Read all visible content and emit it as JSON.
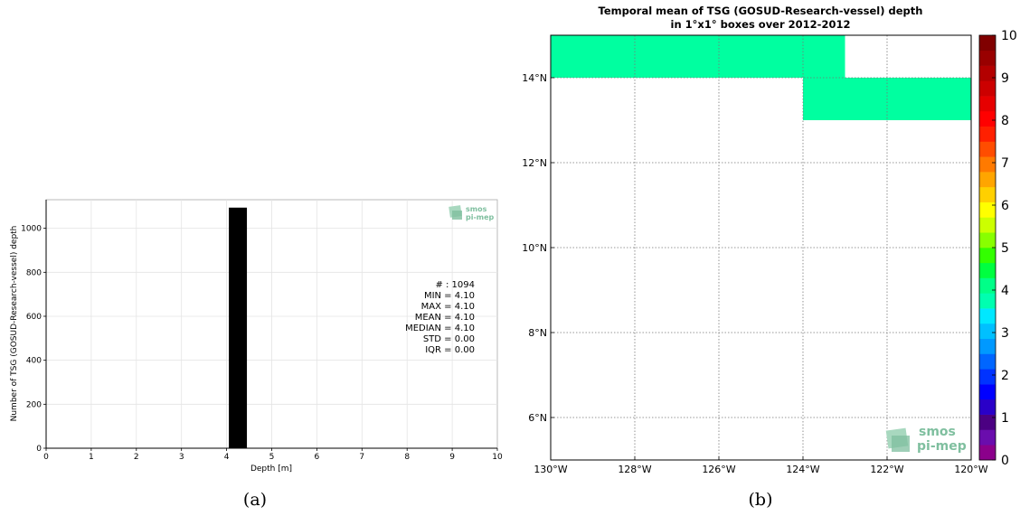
{
  "panel_a": {
    "caption": "(a)",
    "logo_text": [
      "smos",
      "pi-mep"
    ],
    "stats": [
      "# : 1094",
      "MIN = 4.10",
      "MAX =  4.10",
      "MEAN = 4.10",
      "MEDIAN = 4.10",
      "STD = 0.00",
      "IQR = 0.00"
    ]
  },
  "panel_b": {
    "caption": "(b)",
    "logo_text": [
      "smos",
      "pi-mep"
    ]
  },
  "chart_data": [
    {
      "type": "bar",
      "title": "",
      "xlabel": "Depth [m]",
      "ylabel": "Number of TSG (GOSUD-Research-vessel) depth",
      "xlim": [
        0,
        10
      ],
      "ylim": [
        0,
        1130
      ],
      "xticks": [
        "0",
        "1",
        "2",
        "3",
        "4",
        "5",
        "6",
        "7",
        "8",
        "9",
        "10"
      ],
      "yticks": [
        "0",
        "200",
        "400",
        "600",
        "800",
        "1000"
      ],
      "bars": [
        {
          "x0": 4.05,
          "x1": 4.45,
          "value": 1094
        }
      ],
      "bar_color": "#000000",
      "grid": true
    },
    {
      "type": "heatmap",
      "title": "Temporal mean of TSG (GOSUD-Research-vessel) depth",
      "subtitle": "in 1°x1° boxes over 2012-2012",
      "xlim": [
        -130,
        -120
      ],
      "ylim": [
        5,
        15
      ],
      "xticks": [
        "130°W",
        "128°W",
        "126°W",
        "124°W",
        "122°W",
        "120°W"
      ],
      "yticks": [
        "6°N",
        "8°N",
        "10°N",
        "12°N",
        "14°N"
      ],
      "cells": [
        {
          "lon0": -130,
          "lon1": -123,
          "lat0": 14,
          "lat1": 15,
          "value": 4.1
        },
        {
          "lon0": -124,
          "lon1": -120,
          "lat0": 13,
          "lat1": 14,
          "value": 4.1
        }
      ],
      "colorbar": {
        "min": 0,
        "max": 10,
        "ticks": [
          "0",
          "1",
          "2",
          "3",
          "4",
          "5",
          "6",
          "7",
          "8",
          "9",
          "10"
        ],
        "colors": [
          "#8b008b",
          "#6a0dad",
          "#4b0082",
          "#2a00c8",
          "#0000ff",
          "#0033ff",
          "#0066ff",
          "#0099ff",
          "#00c0ff",
          "#00e8ff",
          "#00ffb0",
          "#00ff88",
          "#00ff40",
          "#33ff00",
          "#88ff00",
          "#ccff00",
          "#ffff00",
          "#ffd000",
          "#ffa500",
          "#ff7a00",
          "#ff4d00",
          "#ff2000",
          "#ff0000",
          "#e60000",
          "#cc0000",
          "#b30000",
          "#990000",
          "#800000"
        ]
      },
      "cell_color": "#00ffa0",
      "grid": true
    }
  ]
}
